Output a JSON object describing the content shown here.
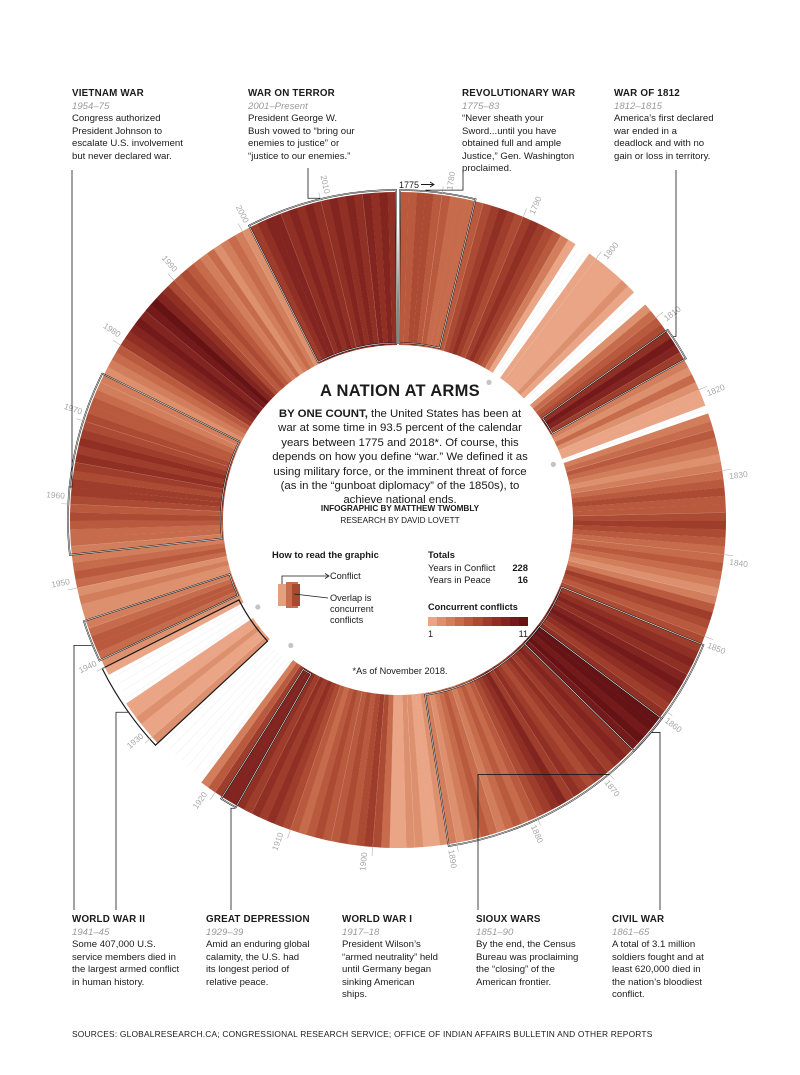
{
  "title": "A NATION AT ARMS",
  "intro": {
    "lead": "BY ONE COUNT,",
    "body": "the United States has been at war at some time in 93.5 percent of the calendar years between 1775 and 2018*. Of course, this depends on how you define “war.” We defined it as using military force, or the imminent threat of force (as in the “gunboat diplomacy” of the 1850s), to achieve national ends."
  },
  "credits": {
    "infographic": "INFOGRAPHIC BY MATTHEW TWOMBLY",
    "research": "RESEARCH BY DAVID LOVETT"
  },
  "how_to_read": {
    "title": "How to read the graphic",
    "conflict": "Conflict",
    "overlap": "Overlap is concurrent conflicts"
  },
  "totals": {
    "title": "Totals",
    "conflict_label": "Years in Conflict",
    "conflict_value": "228",
    "peace_label": "Years in Peace",
    "peace_value": "16"
  },
  "concurrent": {
    "title": "Concurrent conflicts",
    "min_label": "1",
    "max_label": "11",
    "colors": [
      "#e9a585",
      "#dd906d",
      "#d27e5d",
      "#c66b4c",
      "#b95a3e",
      "#ac4b34",
      "#9e3d2b",
      "#902f24",
      "#82241f",
      "#741a1a",
      "#661315"
    ]
  },
  "start_marker": "1775",
  "note": "*As of November 2018.",
  "sources": "SOURCES: GLOBALRESEARCH.CA; CONGRESSIONAL RESEARCH SERVICE; OFFICE OF INDIAN AFFAIRS BULLETIN AND OTHER REPORTS",
  "wars": [
    {
      "id": "vietnam",
      "title": "VIETNAM WAR",
      "years": "1954–75",
      "desc": "Congress authorized President Johnson to escalate U.S. involvement but never declared war."
    },
    {
      "id": "terror",
      "title": "WAR ON TERROR",
      "years": "2001–Present",
      "desc": "President George W. Bush vowed to “bring our enemies to justice” or “justice to our enemies.”"
    },
    {
      "id": "revolutionary",
      "title": "REVOLUTIONARY WAR",
      "years": "1775–83",
      "desc": "“Never sheath your Sword...until you have obtained full and ample Justice,” Gen. Washington proclaimed."
    },
    {
      "id": "war1812",
      "title": "WAR OF 1812",
      "years": "1812–1815",
      "desc": "America’s first declared war ended in a deadlock and with no gain or loss in territory."
    },
    {
      "id": "ww2",
      "title": "WORLD WAR II",
      "years": "1941–45",
      "desc": "Some 407,000 U.S. service members died in the largest armed conflict in human history."
    },
    {
      "id": "depression",
      "title": "GREAT DEPRESSION",
      "years": "1929–39",
      "desc": "Amid an enduring global calamity, the U.S. had its longest period of relative peace."
    },
    {
      "id": "ww1",
      "title": "WORLD WAR I",
      "years": "1917–18",
      "desc": "President Wilson’s “armed neutrality” held until Germany began sinking American ships."
    },
    {
      "id": "sioux",
      "title": "SIOUX WARS",
      "years": "1851–90",
      "desc": "By the end, the Census Bureau was proclaiming the “closing” of the American frontier."
    },
    {
      "id": "civil",
      "title": "CIVIL WAR",
      "years": "1861–65",
      "desc": "A total of 3.1 million soldiers fought and at least 620,000 died in the nation’s bloodiest conflict."
    }
  ],
  "chart_data": {
    "type": "radial-bar",
    "start_year": 1775,
    "end_year": 2018,
    "decade_labels": [
      "1780",
      "1790",
      "1800",
      "1810",
      "1820",
      "1830",
      "1840",
      "1850",
      "1860",
      "1870",
      "1880",
      "1890",
      "1900",
      "1910",
      "1920",
      "1930",
      "1940",
      "1950",
      "1960",
      "1970",
      "1980",
      "1990",
      "2000",
      "2010"
    ],
    "peace_years": [
      1797,
      1798,
      1806,
      1807,
      1822,
      1922,
      1923,
      1924,
      1925,
      1926,
      1927,
      1928,
      1935,
      1936,
      1937,
      1938
    ],
    "highlighted_wars": [
      {
        "name": "Revolutionary War",
        "start": 1775,
        "end": 1783
      },
      {
        "name": "War of 1812",
        "start": 1812,
        "end": 1815
      },
      {
        "name": "Sioux Wars",
        "start": 1851,
        "end": 1890
      },
      {
        "name": "Civil War",
        "start": 1861,
        "end": 1865
      },
      {
        "name": "World War I",
        "start": 1917,
        "end": 1918
      },
      {
        "name": "Great Depression",
        "start": 1929,
        "end": 1939
      },
      {
        "name": "World War II",
        "start": 1941,
        "end": 1945
      },
      {
        "name": "Vietnam War",
        "start": 1954,
        "end": 1975
      },
      {
        "name": "War on Terror",
        "start": 2001,
        "end": 2018
      }
    ],
    "concurrent_conflicts": [
      {
        "year": 1775,
        "value": 5
      },
      {
        "year": 1776,
        "value": 5
      },
      {
        "year": 1777,
        "value": 6
      },
      {
        "year": 1778,
        "value": 6
      },
      {
        "year": 1779,
        "value": 5
      },
      {
        "year": 1780,
        "value": 5
      },
      {
        "year": 1781,
        "value": 4
      },
      {
        "year": 1782,
        "value": 4
      },
      {
        "year": 1783,
        "value": 4
      },
      {
        "year": 1784,
        "value": 5
      },
      {
        "year": 1785,
        "value": 6
      },
      {
        "year": 1786,
        "value": 7
      },
      {
        "year": 1787,
        "value": 8
      },
      {
        "year": 1788,
        "value": 7
      },
      {
        "year": 1789,
        "value": 6
      },
      {
        "year": 1790,
        "value": 7
      },
      {
        "year": 1791,
        "value": 8
      },
      {
        "year": 1792,
        "value": 7
      },
      {
        "year": 1793,
        "value": 6
      },
      {
        "year": 1794,
        "value": 5
      },
      {
        "year": 1795,
        "value": 3
      },
      {
        "year": 1796,
        "value": 1
      },
      {
        "year": 1799,
        "value": 1
      },
      {
        "year": 1800,
        "value": 1
      },
      {
        "year": 1801,
        "value": 1
      },
      {
        "year": 1802,
        "value": 1
      },
      {
        "year": 1803,
        "value": 1
      },
      {
        "year": 1804,
        "value": 2
      },
      {
        "year": 1805,
        "value": 1
      },
      {
        "year": 1808,
        "value": 2
      },
      {
        "year": 1809,
        "value": 4
      },
      {
        "year": 1810,
        "value": 5
      },
      {
        "year": 1811,
        "value": 6
      },
      {
        "year": 1812,
        "value": 8
      },
      {
        "year": 1813,
        "value": 10
      },
      {
        "year": 1814,
        "value": 9
      },
      {
        "year": 1815,
        "value": 7
      },
      {
        "year": 1816,
        "value": 3
      },
      {
        "year": 1817,
        "value": 2
      },
      {
        "year": 1818,
        "value": 4
      },
      {
        "year": 1819,
        "value": 2
      },
      {
        "year": 1820,
        "value": 1
      },
      {
        "year": 1821,
        "value": 1
      },
      {
        "year": 1823,
        "value": 3
      },
      {
        "year": 1824,
        "value": 4
      },
      {
        "year": 1825,
        "value": 5
      },
      {
        "year": 1826,
        "value": 4
      },
      {
        "year": 1827,
        "value": 3
      },
      {
        "year": 1828,
        "value": 2
      },
      {
        "year": 1829,
        "value": 3
      },
      {
        "year": 1830,
        "value": 4
      },
      {
        "year": 1831,
        "value": 5
      },
      {
        "year": 1832,
        "value": 6
      },
      {
        "year": 1833,
        "value": 5
      },
      {
        "year": 1834,
        "value": 5
      },
      {
        "year": 1835,
        "value": 6
      },
      {
        "year": 1836,
        "value": 7
      },
      {
        "year": 1837,
        "value": 6
      },
      {
        "year": 1838,
        "value": 5
      },
      {
        "year": 1839,
        "value": 4
      },
      {
        "year": 1840,
        "value": 4
      },
      {
        "year": 1841,
        "value": 5
      },
      {
        "year": 1842,
        "value": 4
      },
      {
        "year": 1843,
        "value": 3
      },
      {
        "year": 1844,
        "value": 2
      },
      {
        "year": 1845,
        "value": 3
      },
      {
        "year": 1846,
        "value": 5
      },
      {
        "year": 1847,
        "value": 7
      },
      {
        "year": 1848,
        "value": 6
      },
      {
        "year": 1849,
        "value": 5
      },
      {
        "year": 1850,
        "value": 6
      },
      {
        "year": 1851,
        "value": 7
      },
      {
        "year": 1852,
        "value": 8
      },
      {
        "year": 1853,
        "value": 9
      },
      {
        "year": 1854,
        "value": 8
      },
      {
        "year": 1855,
        "value": 9
      },
      {
        "year": 1856,
        "value": 10
      },
      {
        "year": 1857,
        "value": 9
      },
      {
        "year": 1858,
        "value": 8
      },
      {
        "year": 1859,
        "value": 7
      },
      {
        "year": 1860,
        "value": 8
      },
      {
        "year": 1861,
        "value": 11
      },
      {
        "year": 1862,
        "value": 11
      },
      {
        "year": 1863,
        "value": 10
      },
      {
        "year": 1864,
        "value": 11
      },
      {
        "year": 1865,
        "value": 10
      },
      {
        "year": 1866,
        "value": 8
      },
      {
        "year": 1867,
        "value": 9
      },
      {
        "year": 1868,
        "value": 8
      },
      {
        "year": 1869,
        "value": 7
      },
      {
        "year": 1870,
        "value": 8
      },
      {
        "year": 1871,
        "value": 7
      },
      {
        "year": 1872,
        "value": 6
      },
      {
        "year": 1873,
        "value": 7
      },
      {
        "year": 1874,
        "value": 8
      },
      {
        "year": 1875,
        "value": 7
      },
      {
        "year": 1876,
        "value": 9
      },
      {
        "year": 1877,
        "value": 8
      },
      {
        "year": 1878,
        "value": 7
      },
      {
        "year": 1879,
        "value": 6
      },
      {
        "year": 1880,
        "value": 5
      },
      {
        "year": 1881,
        "value": 4
      },
      {
        "year": 1882,
        "value": 5
      },
      {
        "year": 1883,
        "value": 4
      },
      {
        "year": 1884,
        "value": 3
      },
      {
        "year": 1885,
        "value": 4
      },
      {
        "year": 1886,
        "value": 5
      },
      {
        "year": 1887,
        "value": 4
      },
      {
        "year": 1888,
        "value": 3
      },
      {
        "year": 1889,
        "value": 2
      },
      {
        "year": 1890,
        "value": 3
      },
      {
        "year": 1891,
        "value": 2
      },
      {
        "year": 1892,
        "value": 1
      },
      {
        "year": 1893,
        "value": 1
      },
      {
        "year": 1894,
        "value": 2
      },
      {
        "year": 1895,
        "value": 2
      },
      {
        "year": 1896,
        "value": 1
      },
      {
        "year": 1897,
        "value": 1
      },
      {
        "year": 1898,
        "value": 4
      },
      {
        "year": 1899,
        "value": 6
      },
      {
        "year": 1900,
        "value": 7
      },
      {
        "year": 1901,
        "value": 6
      },
      {
        "year": 1902,
        "value": 5
      },
      {
        "year": 1903,
        "value": 6
      },
      {
        "year": 1904,
        "value": 5
      },
      {
        "year": 1905,
        "value": 5
      },
      {
        "year": 1906,
        "value": 6
      },
      {
        "year": 1907,
        "value": 5
      },
      {
        "year": 1908,
        "value": 4
      },
      {
        "year": 1909,
        "value": 5
      },
      {
        "year": 1910,
        "value": 6
      },
      {
        "year": 1911,
        "value": 7
      },
      {
        "year": 1912,
        "value": 8
      },
      {
        "year": 1913,
        "value": 7
      },
      {
        "year": 1914,
        "value": 8
      },
      {
        "year": 1915,
        "value": 7
      },
      {
        "year": 1916,
        "value": 8
      },
      {
        "year": 1917,
        "value": 9
      },
      {
        "year": 1918,
        "value": 9
      },
      {
        "year": 1919,
        "value": 7
      },
      {
        "year": 1920,
        "value": 5
      },
      {
        "year": 1921,
        "value": 3
      },
      {
        "year": 1929,
        "value": 2
      },
      {
        "year": 1930,
        "value": 1
      },
      {
        "year": 1931,
        "value": 1
      },
      {
        "year": 1932,
        "value": 2
      },
      {
        "year": 1933,
        "value": 1
      },
      {
        "year": 1934,
        "value": 1
      },
      {
        "year": 1939,
        "value": 1
      },
      {
        "year": 1940,
        "value": 2
      },
      {
        "year": 1941,
        "value": 4
      },
      {
        "year": 1942,
        "value": 5
      },
      {
        "year": 1943,
        "value": 5
      },
      {
        "year": 1944,
        "value": 4
      },
      {
        "year": 1945,
        "value": 3
      },
      {
        "year": 1946,
        "value": 2
      },
      {
        "year": 1947,
        "value": 2
      },
      {
        "year": 1948,
        "value": 3
      },
      {
        "year": 1949,
        "value": 2
      },
      {
        "year": 1950,
        "value": 4
      },
      {
        "year": 1951,
        "value": 5
      },
      {
        "year": 1952,
        "value": 4
      },
      {
        "year": 1953,
        "value": 3
      },
      {
        "year": 1954,
        "value": 3
      },
      {
        "year": 1955,
        "value": 4
      },
      {
        "year": 1956,
        "value": 4
      },
      {
        "year": 1957,
        "value": 5
      },
      {
        "year": 1958,
        "value": 6
      },
      {
        "year": 1959,
        "value": 5
      },
      {
        "year": 1960,
        "value": 6
      },
      {
        "year": 1961,
        "value": 7
      },
      {
        "year": 1962,
        "value": 7
      },
      {
        "year": 1963,
        "value": 6
      },
      {
        "year": 1964,
        "value": 7
      },
      {
        "year": 1965,
        "value": 8
      },
      {
        "year": 1966,
        "value": 7
      },
      {
        "year": 1967,
        "value": 8
      },
      {
        "year": 1968,
        "value": 7
      },
      {
        "year": 1969,
        "value": 6
      },
      {
        "year": 1970,
        "value": 6
      },
      {
        "year": 1971,
        "value": 5
      },
      {
        "year": 1972,
        "value": 5
      },
      {
        "year": 1973,
        "value": 4
      },
      {
        "year": 1974,
        "value": 3
      },
      {
        "year": 1975,
        "value": 3
      },
      {
        "year": 1976,
        "value": 2
      },
      {
        "year": 1977,
        "value": 3
      },
      {
        "year": 1978,
        "value": 4
      },
      {
        "year": 1979,
        "value": 5
      },
      {
        "year": 1980,
        "value": 7
      },
      {
        "year": 1981,
        "value": 8
      },
      {
        "year": 1982,
        "value": 9
      },
      {
        "year": 1983,
        "value": 10
      },
      {
        "year": 1984,
        "value": 9
      },
      {
        "year": 1985,
        "value": 10
      },
      {
        "year": 1986,
        "value": 11
      },
      {
        "year": 1987,
        "value": 9
      },
      {
        "year": 1988,
        "value": 8
      },
      {
        "year": 1989,
        "value": 6
      },
      {
        "year": 1990,
        "value": 5
      },
      {
        "year": 1991,
        "value": 6
      },
      {
        "year": 1992,
        "value": 5
      },
      {
        "year": 1993,
        "value": 4
      },
      {
        "year": 1994,
        "value": 3
      },
      {
        "year": 1995,
        "value": 4
      },
      {
        "year": 1996,
        "value": 2
      },
      {
        "year": 1997,
        "value": 3
      },
      {
        "year": 1998,
        "value": 4
      },
      {
        "year": 1999,
        "value": 3
      },
      {
        "year": 2000,
        "value": 2
      },
      {
        "year": 2001,
        "value": 7
      },
      {
        "year": 2002,
        "value": 8
      },
      {
        "year": 2003,
        "value": 9
      },
      {
        "year": 2004,
        "value": 9
      },
      {
        "year": 2005,
        "value": 8
      },
      {
        "year": 2006,
        "value": 9
      },
      {
        "year": 2007,
        "value": 8
      },
      {
        "year": 2008,
        "value": 9
      },
      {
        "year": 2009,
        "value": 8
      },
      {
        "year": 2010,
        "value": 8
      },
      {
        "year": 2011,
        "value": 9
      },
      {
        "year": 2012,
        "value": 8
      },
      {
        "year": 2013,
        "value": 9
      },
      {
        "year": 2014,
        "value": 8
      },
      {
        "year": 2015,
        "value": 9
      },
      {
        "year": 2016,
        "value": 8
      },
      {
        "year": 2017,
        "value": 9
      },
      {
        "year": 2018,
        "value": 8
      }
    ]
  }
}
